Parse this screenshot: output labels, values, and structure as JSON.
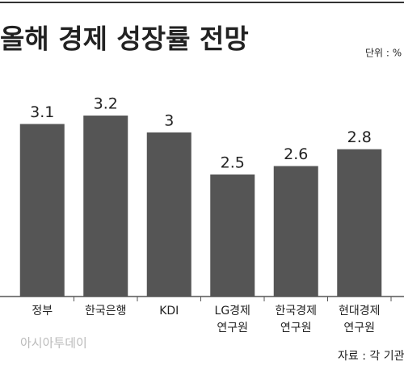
{
  "chart_data": {
    "type": "bar",
    "title": "올해 경제 성장률 전망",
    "unit": "단위 : %",
    "categories": [
      "정부",
      "한국은행",
      "KDI",
      "LG경제\n연구원",
      "한국경제\n연구원",
      "현대경제\n연구원"
    ],
    "values": [
      3.1,
      3.2,
      3.0,
      2.5,
      2.6,
      2.8
    ],
    "color": "#555555",
    "ylim": [
      1.05,
      3.45
    ],
    "source": "자료 : 각 기관",
    "watermark": "아시아투데이"
  }
}
